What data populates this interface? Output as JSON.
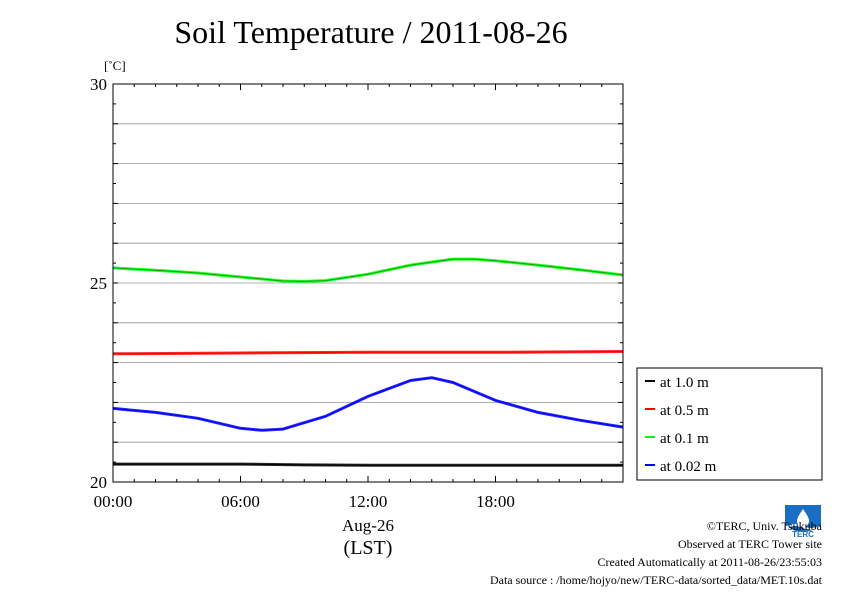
{
  "chart_data": {
    "type": "line",
    "title": "Soil Temperature / 2011-08-26",
    "ylabel": "[˚C]",
    "ylim": [
      20,
      30
    ],
    "yticks": [
      20,
      25,
      30
    ],
    "xlim": [
      0,
      24
    ],
    "xticks": [
      {
        "value": 0,
        "label": "00:00"
      },
      {
        "value": 6,
        "label": "06:00"
      },
      {
        "value": 12,
        "label": "12:00"
      },
      {
        "value": 18,
        "label": "18:00"
      }
    ],
    "xdate_label": "Aug-26",
    "xlabel": "(LST)",
    "grid": true,
    "legend_position": "right",
    "series": [
      {
        "name": "at 1.0 m",
        "color": "#000000",
        "x": [
          0,
          3,
          6,
          9,
          12,
          15,
          18,
          21,
          24
        ],
        "y": [
          20.45,
          20.45,
          20.45,
          20.43,
          20.42,
          20.42,
          20.42,
          20.42,
          20.42
        ]
      },
      {
        "name": "at 0.5 m",
        "color": "#ff0000",
        "x": [
          0,
          6,
          12,
          18,
          24
        ],
        "y": [
          23.22,
          23.24,
          23.26,
          23.26,
          23.28
        ]
      },
      {
        "name": "at 0.1 m",
        "color": "#00ff00",
        "x": [
          0,
          2,
          4,
          6,
          8,
          9,
          10,
          12,
          14,
          16,
          17,
          18,
          20,
          22,
          24
        ],
        "y": [
          25.38,
          25.32,
          25.25,
          25.15,
          25.05,
          25.04,
          25.06,
          25.22,
          25.45,
          25.6,
          25.6,
          25.56,
          25.45,
          25.33,
          25.2
        ]
      },
      {
        "name": "at 0.02 m",
        "color": "#0000ff",
        "x": [
          0,
          2,
          4,
          6,
          7,
          8,
          10,
          12,
          14,
          15,
          16,
          18,
          20,
          22,
          24
        ],
        "y": [
          21.85,
          21.75,
          21.6,
          21.35,
          21.3,
          21.33,
          21.65,
          22.15,
          22.55,
          22.62,
          22.5,
          22.05,
          21.75,
          21.55,
          21.38
        ]
      }
    ]
  },
  "footer": {
    "copyright": "©TERC, Univ. Tsukuba",
    "observed": "Observed at TERC Tower site",
    "created": "Created Automatically at 2011-08-26/23:55:03",
    "source": "Data source : /home/hojyo/new/TERC-data/sorted_data/MET.10s.dat"
  },
  "logo": {
    "text": "TERC",
    "color": "#1a6fc4"
  }
}
